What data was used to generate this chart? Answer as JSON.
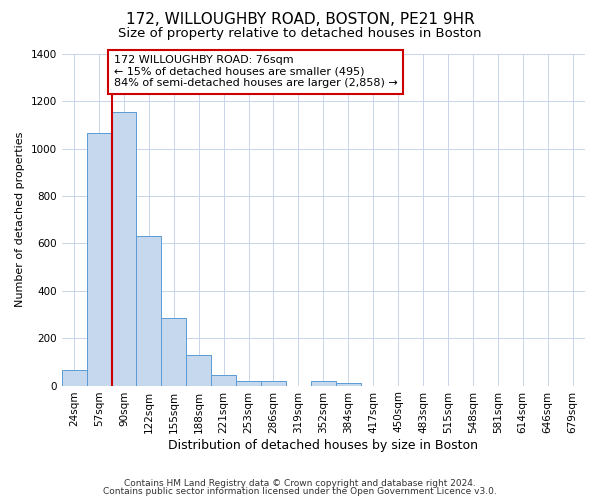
{
  "title1": "172, WILLOUGHBY ROAD, BOSTON, PE21 9HR",
  "title2": "Size of property relative to detached houses in Boston",
  "xlabel": "Distribution of detached houses by size in Boston",
  "ylabel": "Number of detached properties",
  "bar_labels": [
    "24sqm",
    "57sqm",
    "90sqm",
    "122sqm",
    "155sqm",
    "188sqm",
    "221sqm",
    "253sqm",
    "286sqm",
    "319sqm",
    "352sqm",
    "384sqm",
    "417sqm",
    "450sqm",
    "483sqm",
    "515sqm",
    "548sqm",
    "581sqm",
    "614sqm",
    "646sqm",
    "679sqm"
  ],
  "bar_values": [
    65,
    1065,
    1155,
    630,
    285,
    130,
    45,
    20,
    20,
    0,
    20,
    10,
    0,
    0,
    0,
    0,
    0,
    0,
    0,
    0,
    0
  ],
  "bar_color": "#c5d8ed",
  "bar_edge_color": "#5b9bd5",
  "annotation_text": "172 WILLOUGHBY ROAD: 76sqm\n← 15% of detached houses are smaller (495)\n84% of semi-detached houses are larger (2,858) →",
  "annotation_box_color": "#ffffff",
  "annotation_box_edge": "#cc0000",
  "red_line_color": "#cc0000",
  "ylim": [
    0,
    1400
  ],
  "yticks": [
    0,
    200,
    400,
    600,
    800,
    1000,
    1200,
    1400
  ],
  "footer1": "Contains HM Land Registry data © Crown copyright and database right 2024.",
  "footer2": "Contains public sector information licensed under the Open Government Licence v3.0.",
  "bg_color": "#ffffff",
  "grid_color": "#c8d4e8",
  "title1_fontsize": 11,
  "title2_fontsize": 9.5,
  "xlabel_fontsize": 9,
  "ylabel_fontsize": 8,
  "tick_fontsize": 7.5,
  "footer_fontsize": 6.5
}
